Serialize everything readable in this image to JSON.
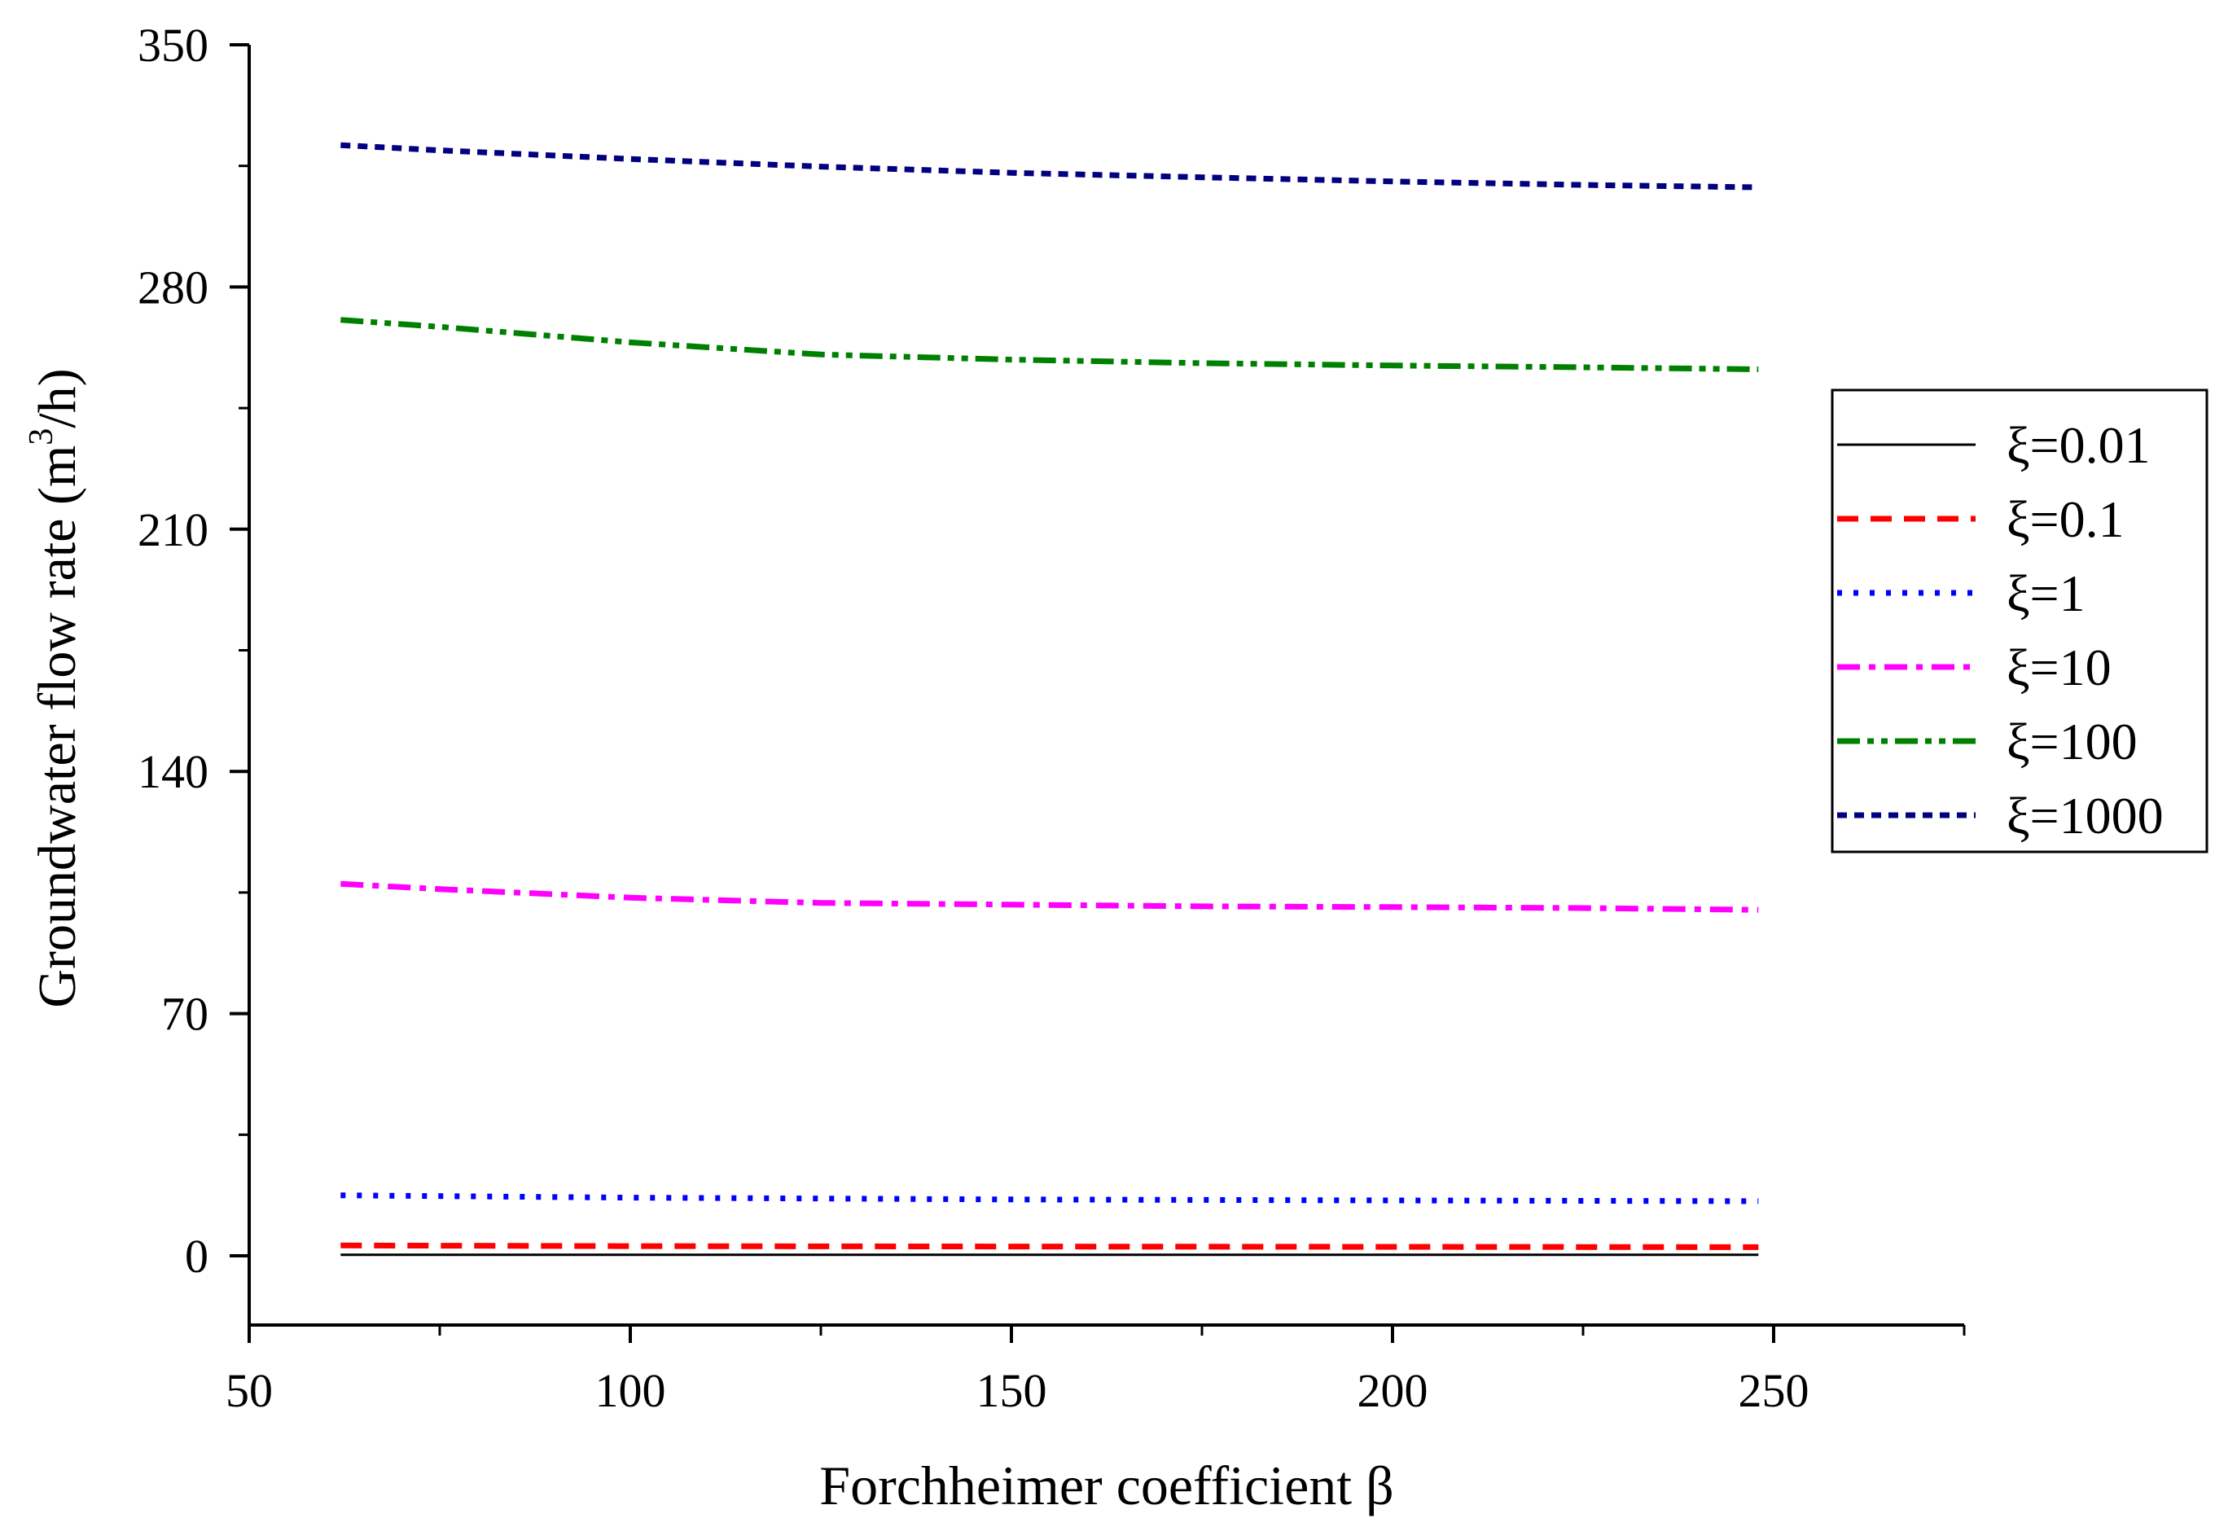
{
  "chart_data": {
    "type": "line",
    "title": "",
    "xlabel": "Forchheimer coefficient β",
    "ylabel_main": "Groundwater flow rate (m",
    "ylabel_sup": "3",
    "ylabel_tail": "/h)",
    "xlim": [
      50,
      275
    ],
    "ylim": [
      -20,
      350
    ],
    "x_major_ticks": [
      50,
      100,
      150,
      200,
      250
    ],
    "x_minor_ticks": [
      75,
      125,
      175,
      225,
      275
    ],
    "y_major_ticks": [
      0,
      70,
      140,
      210,
      280,
      350
    ],
    "y_minor_ticks": [
      35,
      105,
      175,
      245,
      315
    ],
    "grid": false,
    "legend_position": "right",
    "series": [
      {
        "name": "ξ=0.01",
        "color": "#000000",
        "dash": "solid",
        "x": [
          62,
          100,
          150,
          200,
          248
        ],
        "y": [
          0.3,
          0.3,
          0.3,
          0.3,
          0.3
        ]
      },
      {
        "name": "ξ=0.1",
        "color": "#ff0000",
        "dash": "dash",
        "x": [
          62,
          100,
          150,
          200,
          248
        ],
        "y": [
          3.0,
          2.8,
          2.7,
          2.6,
          2.5
        ]
      },
      {
        "name": "ξ=1",
        "color": "#0000ff",
        "dash": "dot",
        "x": [
          62,
          100,
          150,
          200,
          248
        ],
        "y": [
          17.5,
          16.8,
          16.3,
          16.0,
          15.8
        ]
      },
      {
        "name": "ξ=10",
        "color": "#ff00ff",
        "dash": "dashdot",
        "x": [
          62,
          75,
          100,
          125,
          150,
          175,
          200,
          225,
          248
        ],
        "y": [
          107.5,
          106.0,
          103.5,
          102.0,
          101.5,
          101.0,
          100.8,
          100.5,
          100.0
        ]
      },
      {
        "name": "ξ=100",
        "color": "#008000",
        "dash": "dashdotdot",
        "x": [
          62,
          75,
          100,
          125,
          150,
          175,
          200,
          225,
          248
        ],
        "y": [
          270.5,
          268.5,
          264.0,
          260.5,
          259.0,
          258.0,
          257.3,
          256.8,
          256.2
        ]
      },
      {
        "name": "ξ=1000",
        "color": "#000080",
        "dash": "shortdash",
        "x": [
          62,
          75,
          100,
          125,
          150,
          175,
          200,
          225,
          248
        ],
        "y": [
          321.0,
          319.5,
          317.0,
          314.8,
          313.0,
          311.7,
          310.5,
          309.5,
          308.8
        ]
      }
    ]
  }
}
